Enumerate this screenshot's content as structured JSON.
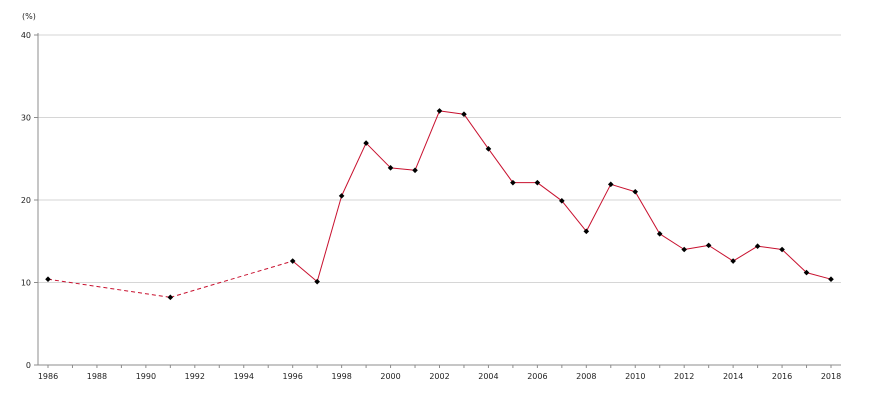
{
  "chart_data": {
    "type": "line",
    "title": "",
    "xlabel": "",
    "ylabel": "",
    "y_unit": "(%)",
    "xlim": [
      1986,
      2018
    ],
    "ylim": [
      0,
      40
    ],
    "x_ticks": [
      1986,
      1988,
      1990,
      1992,
      1994,
      1996,
      1998,
      2000,
      2002,
      2004,
      2006,
      2008,
      2010,
      2012,
      2014,
      2016,
      2018
    ],
    "y_ticks": [
      0,
      10,
      20,
      30,
      40
    ],
    "grid": "horizontal",
    "series": [
      {
        "color": "#c8102e",
        "marker_color": "#000000",
        "points": [
          {
            "x": 1986,
            "y": 10.4
          },
          {
            "x": 1991,
            "y": 8.2
          },
          {
            "x": 1996,
            "y": 12.6
          },
          {
            "x": 1997,
            "y": 10.1
          },
          {
            "x": 1998,
            "y": 20.5
          },
          {
            "x": 1999,
            "y": 26.9
          },
          {
            "x": 2000,
            "y": 23.9
          },
          {
            "x": 2001,
            "y": 23.6
          },
          {
            "x": 2002,
            "y": 30.8
          },
          {
            "x": 2003,
            "y": 30.4
          },
          {
            "x": 2004,
            "y": 26.2
          },
          {
            "x": 2005,
            "y": 22.1
          },
          {
            "x": 2006,
            "y": 22.1
          },
          {
            "x": 2007,
            "y": 19.9
          },
          {
            "x": 2008,
            "y": 16.2
          },
          {
            "x": 2009,
            "y": 21.9
          },
          {
            "x": 2010,
            "y": 21.0
          },
          {
            "x": 2011,
            "y": 15.9
          },
          {
            "x": 2012,
            "y": 14.0
          },
          {
            "x": 2013,
            "y": 14.5
          },
          {
            "x": 2014,
            "y": 12.6
          },
          {
            "x": 2015,
            "y": 14.4
          },
          {
            "x": 2016,
            "y": 14.0
          },
          {
            "x": 2017,
            "y": 11.2
          },
          {
            "x": 2018,
            "y": 10.4
          }
        ],
        "dashed_segments": [
          [
            1986,
            1991
          ],
          [
            1991,
            1996
          ]
        ]
      }
    ]
  }
}
